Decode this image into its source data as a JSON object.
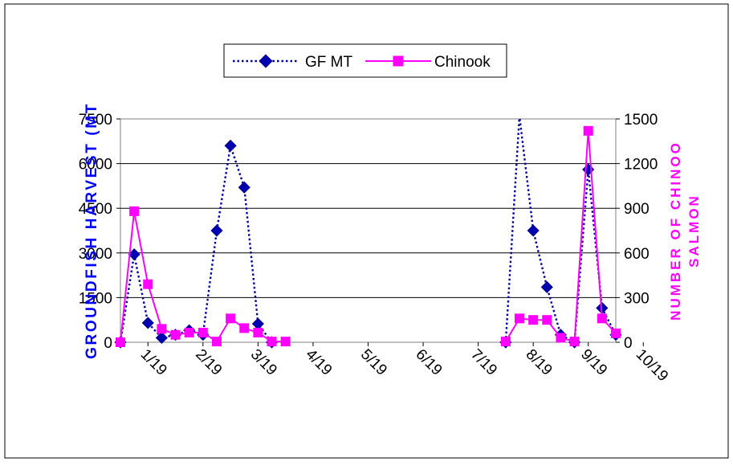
{
  "chart_data": {
    "type": "line",
    "title": "",
    "ylabel_left": "GROUNDFISH HARVEST (MT",
    "ylabel_right": "NUMBER OF CHINOO SALMON",
    "x_tick_labels": [
      "1/19",
      "2/19",
      "3/19",
      "4/19",
      "5/19",
      "6/19",
      "7/19",
      "8/19",
      "9/19",
      "10/19"
    ],
    "x_range": [
      0,
      18
    ],
    "y_left_range": [
      0,
      7500
    ],
    "y_left_ticks": [
      "0",
      "1500",
      "3000",
      "4500",
      "6000",
      "7500"
    ],
    "y_right_range": [
      0,
      1500
    ],
    "y_right_ticks": [
      "0",
      "300",
      "600",
      "900",
      "1200",
      "1500"
    ],
    "grid": "horizontal",
    "legend_position": "top",
    "series": [
      {
        "name": "GF MT",
        "axis": "left",
        "color": "#0000a0",
        "marker": "diamond",
        "line_style": "dotted",
        "segments": [
          [
            [
              0,
              0
            ],
            [
              0.5,
              2950
            ],
            [
              1.0,
              650
            ],
            [
              1.5,
              150
            ],
            [
              2.0,
              250
            ],
            [
              2.5,
              400
            ],
            [
              3.0,
              250
            ],
            [
              3.5,
              3750
            ],
            [
              4.0,
              6600
            ],
            [
              4.5,
              5200
            ],
            [
              5.0,
              620
            ],
            [
              5.5,
              0
            ]
          ],
          [
            [
              14.0,
              0
            ],
            [
              14.5,
              7600
            ],
            [
              15.0,
              3750
            ],
            [
              15.5,
              1850
            ],
            [
              16.0,
              250
            ],
            [
              16.5,
              0
            ],
            [
              17.0,
              5800
            ],
            [
              17.5,
              1150
            ],
            [
              18.0,
              250
            ]
          ]
        ]
      },
      {
        "name": "Chinook",
        "axis": "right",
        "color": "#ff00ff",
        "marker": "square",
        "line_style": "solid",
        "segments": [
          [
            [
              0,
              0
            ],
            [
              0.5,
              880
            ],
            [
              1.0,
              390
            ],
            [
              1.5,
              90
            ],
            [
              2.0,
              50
            ],
            [
              2.5,
              65
            ],
            [
              3.0,
              65
            ],
            [
              3.5,
              5
            ],
            [
              4.0,
              160
            ],
            [
              4.5,
              95
            ],
            [
              5.0,
              65
            ],
            [
              5.5,
              5
            ],
            [
              6.0,
              5
            ]
          ],
          [
            [
              14.0,
              5
            ],
            [
              14.5,
              160
            ],
            [
              15.0,
              150
            ],
            [
              15.5,
              150
            ],
            [
              16.0,
              30
            ],
            [
              16.5,
              5
            ],
            [
              17.0,
              1420
            ],
            [
              17.5,
              160
            ],
            [
              18.0,
              60
            ]
          ]
        ]
      }
    ]
  }
}
